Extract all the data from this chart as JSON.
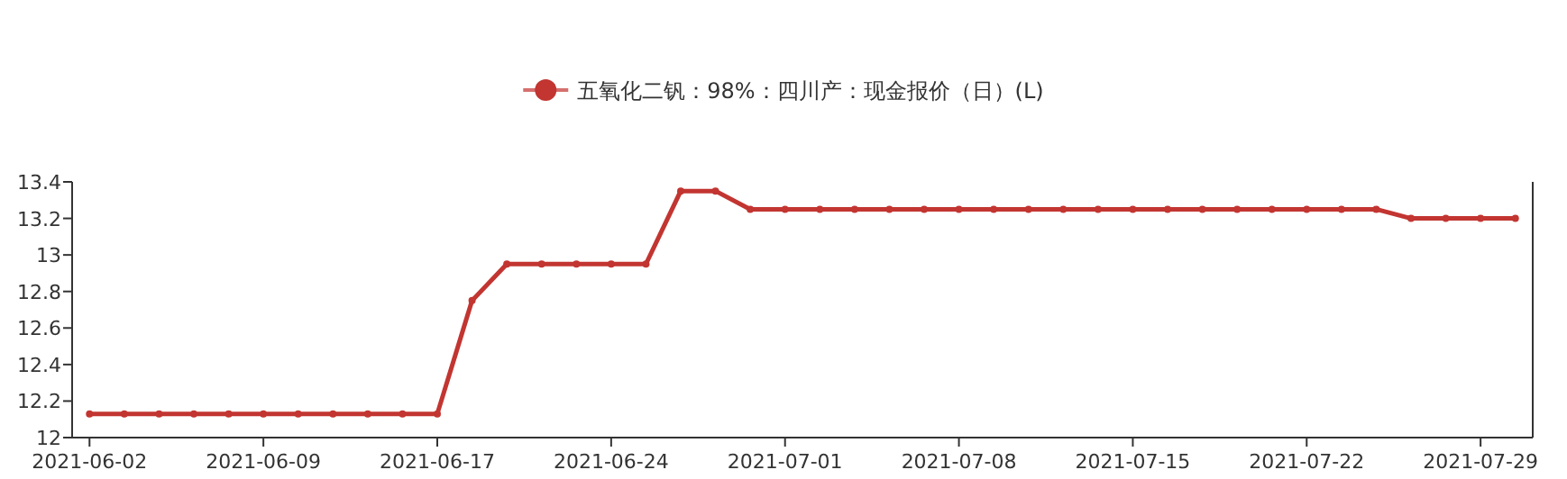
{
  "chart_data": {
    "type": "line",
    "categories": [
      "2021-06-02",
      null,
      null,
      null,
      null,
      "2021-06-09",
      null,
      null,
      null,
      null,
      "2021-06-17",
      null,
      null,
      null,
      null,
      "2021-06-24",
      null,
      null,
      null,
      null,
      "2021-07-01",
      null,
      null,
      null,
      null,
      "2021-07-08",
      null,
      null,
      null,
      null,
      "2021-07-15",
      null,
      null,
      null,
      null,
      "2021-07-22",
      null,
      null,
      null,
      null,
      "2021-07-29",
      null
    ],
    "series": [
      {
        "name": "五氧化二钒：98%：四川产：现金报价（日）(L)",
        "color": "#c23531",
        "values": [
          12.13,
          12.13,
          12.13,
          12.13,
          12.13,
          12.13,
          12.13,
          12.13,
          12.13,
          12.13,
          12.13,
          12.75,
          12.95,
          12.95,
          12.95,
          12.95,
          12.95,
          13.35,
          13.35,
          13.25,
          13.25,
          13.25,
          13.25,
          13.25,
          13.25,
          13.25,
          13.25,
          13.25,
          13.25,
          13.25,
          13.25,
          13.25,
          13.25,
          13.25,
          13.25,
          13.25,
          13.25,
          13.25,
          13.2,
          13.2,
          13.2,
          13.2
        ]
      }
    ],
    "ylim": [
      12,
      13.4
    ],
    "yticks": [
      12,
      12.2,
      12.4,
      12.6,
      12.8,
      13,
      13.2,
      13.4
    ],
    "legend": "top",
    "marker": "circle",
    "grid": false
  }
}
